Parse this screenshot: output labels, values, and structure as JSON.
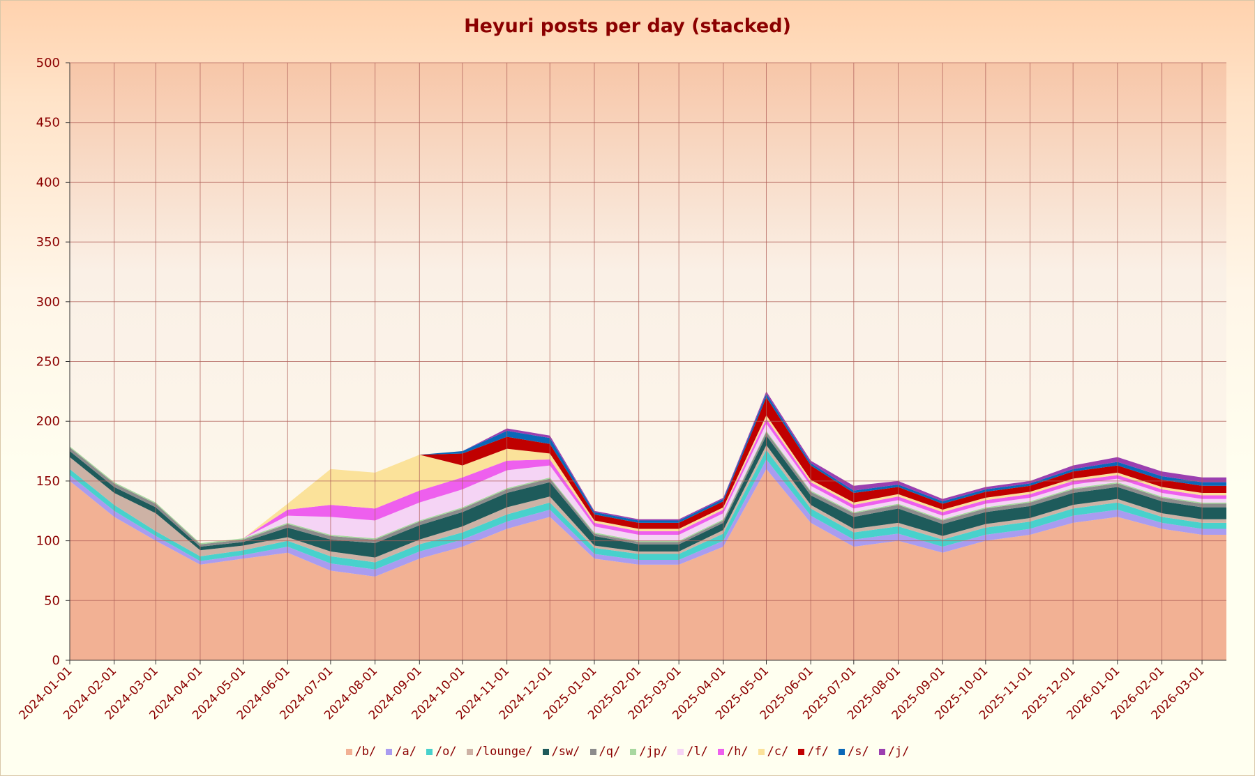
{
  "chart_data": {
    "type": "area",
    "title": "Heyuri posts per day (stacked)",
    "xlabel": "",
    "ylabel": "",
    "ylim": [
      0,
      500
    ],
    "yticks": [
      0,
      50,
      100,
      150,
      200,
      250,
      300,
      350,
      400,
      450,
      500
    ],
    "xlim": [
      "2024-01-01",
      "2026-03-18"
    ],
    "xticks": [
      "2024-01-01",
      "2024-02-01",
      "2024-03-01",
      "2024-04-01",
      "2024-05-01",
      "2024-06-01",
      "2024-07-01",
      "2024-08-01",
      "2024-09-01",
      "2024-10-01",
      "2024-11-01",
      "2024-12-01",
      "2025-01-01",
      "2025-02-01",
      "2025-03-01",
      "2025-04-01",
      "2025-05-01",
      "2025-06-01",
      "2025-07-01",
      "2025-08-01",
      "2025-09-01",
      "2025-10-01",
      "2025-11-01",
      "2025-12-01",
      "2026-01-01",
      "2026-02-01",
      "2026-03-01"
    ],
    "grid": true,
    "legend_position": "bottom",
    "x": [
      "2024-01-01",
      "2024-02-01",
      "2024-03-01",
      "2024-04-01",
      "2024-05-01",
      "2024-06-01",
      "2024-07-01",
      "2024-08-01",
      "2024-09-01",
      "2024-10-01",
      "2024-11-01",
      "2024-12-01",
      "2025-01-01",
      "2025-02-01",
      "2025-03-01",
      "2025-04-01",
      "2025-05-01",
      "2025-06-01",
      "2025-07-01",
      "2025-08-01",
      "2025-09-01",
      "2025-10-01",
      "2025-11-01",
      "2025-12-01",
      "2026-01-01",
      "2026-02-01",
      "2026-03-01"
    ],
    "series": [
      {
        "name": "/b/",
        "color": "#f2b194",
        "values": [
          150,
          120,
          100,
          80,
          85,
          90,
          75,
          70,
          85,
          95,
          110,
          120,
          85,
          80,
          80,
          95,
          160,
          115,
          95,
          100,
          90,
          100,
          105,
          115,
          120,
          110,
          105
        ]
      },
      {
        "name": "/a/",
        "color": "#a99cf0",
        "values": [
          5,
          5,
          4,
          3,
          3,
          5,
          6,
          6,
          6,
          6,
          6,
          6,
          4,
          4,
          4,
          5,
          8,
          6,
          6,
          6,
          5,
          5,
          5,
          6,
          6,
          5,
          5
        ]
      },
      {
        "name": "/o/",
        "color": "#48d1cc",
        "values": [
          5,
          5,
          4,
          4,
          4,
          5,
          6,
          6,
          6,
          6,
          6,
          6,
          5,
          5,
          5,
          6,
          8,
          6,
          6,
          6,
          6,
          6,
          6,
          6,
          6,
          5,
          5
        ]
      },
      {
        "name": "/lounge/",
        "color": "#cdb2a5",
        "values": [
          10,
          10,
          15,
          5,
          4,
          3,
          4,
          4,
          4,
          5,
          6,
          5,
          2,
          2,
          2,
          3,
          4,
          3,
          3,
          3,
          3,
          3,
          3,
          3,
          3,
          3,
          3
        ]
      },
      {
        "name": "/sw/",
        "color": "#1e5b5b",
        "values": [
          5,
          5,
          5,
          3,
          3,
          8,
          10,
          12,
          12,
          12,
          12,
          12,
          8,
          6,
          6,
          6,
          8,
          8,
          10,
          12,
          10,
          10,
          10,
          10,
          10,
          10,
          10
        ]
      },
      {
        "name": "/q/",
        "color": "#8c8c8c",
        "values": [
          3,
          3,
          3,
          2,
          2,
          3,
          3,
          3,
          3,
          3,
          3,
          3,
          2,
          2,
          2,
          2,
          3,
          3,
          3,
          3,
          3,
          3,
          3,
          3,
          3,
          3,
          3
        ]
      },
      {
        "name": "/jp/",
        "color": "#a8d8a0",
        "values": [
          1,
          1,
          1,
          1,
          1,
          1,
          1,
          1,
          1,
          1,
          1,
          1,
          1,
          1,
          1,
          1,
          1,
          1,
          1,
          1,
          1,
          1,
          1,
          1,
          1,
          1,
          1
        ]
      },
      {
        "name": "/l/",
        "color": "#f5d4f5",
        "values": [
          0,
          0,
          0,
          0,
          0,
          6,
          15,
          15,
          15,
          15,
          15,
          10,
          5,
          5,
          5,
          5,
          6,
          4,
          3,
          3,
          3,
          3,
          3,
          3,
          3,
          3,
          3
        ]
      },
      {
        "name": "/h/",
        "color": "#ee5fee",
        "values": [
          0,
          0,
          0,
          0,
          0,
          5,
          10,
          10,
          10,
          10,
          8,
          5,
          3,
          3,
          3,
          3,
          4,
          3,
          3,
          3,
          3,
          3,
          3,
          3,
          3,
          3,
          3
        ]
      },
      {
        "name": "/c/",
        "color": "#fbe29a",
        "values": [
          0,
          0,
          0,
          0,
          0,
          5,
          30,
          30,
          30,
          10,
          10,
          5,
          2,
          2,
          2,
          2,
          3,
          2,
          2,
          2,
          2,
          2,
          2,
          2,
          2,
          2,
          2
        ]
      },
      {
        "name": "/f/",
        "color": "#c00000",
        "values": [
          0,
          0,
          0,
          0,
          0,
          0,
          0,
          0,
          0,
          10,
          10,
          8,
          5,
          5,
          5,
          5,
          15,
          12,
          8,
          6,
          5,
          5,
          5,
          6,
          6,
          6,
          6
        ]
      },
      {
        "name": "/s/",
        "color": "#0a68b8",
        "values": [
          0,
          0,
          0,
          0,
          0,
          0,
          0,
          0,
          0,
          2,
          5,
          5,
          2,
          2,
          2,
          2,
          3,
          2,
          2,
          2,
          2,
          2,
          2,
          2,
          3,
          3,
          3
        ]
      },
      {
        "name": "/j/",
        "color": "#9b3fb0",
        "values": [
          0,
          0,
          0,
          0,
          0,
          0,
          0,
          0,
          0,
          0,
          2,
          2,
          1,
          1,
          1,
          1,
          2,
          2,
          4,
          3,
          2,
          2,
          2,
          3,
          4,
          4,
          4
        ]
      }
    ]
  }
}
